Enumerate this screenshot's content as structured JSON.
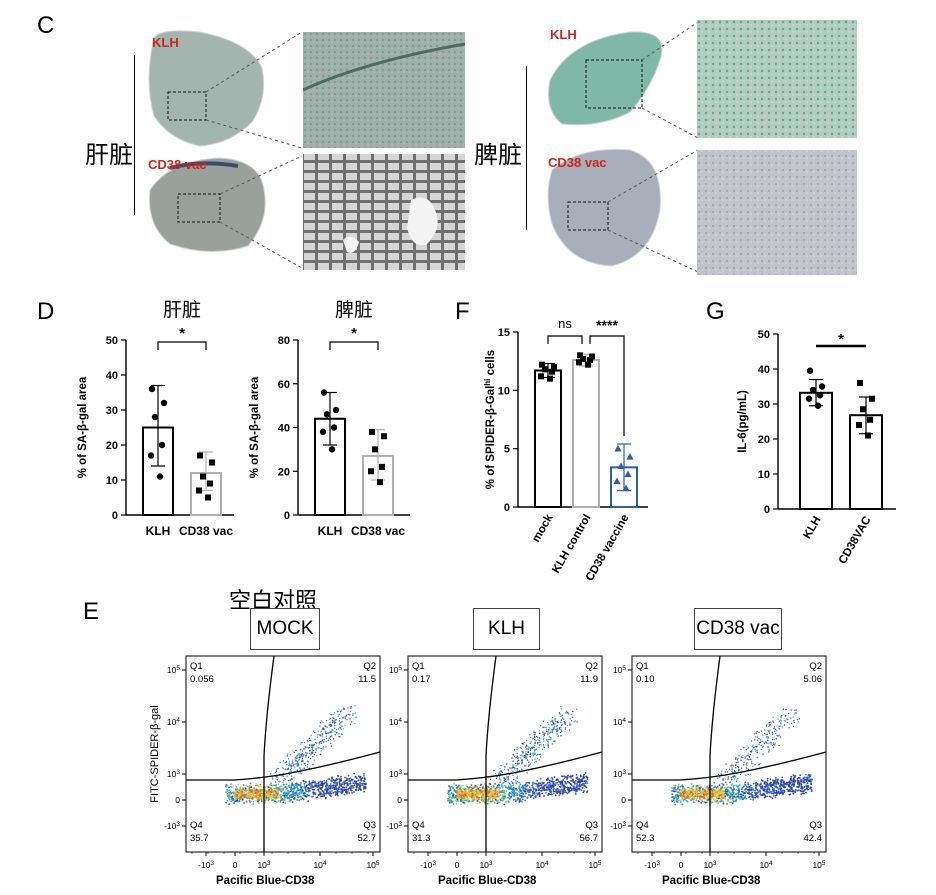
{
  "panel_c": {
    "letter": "C",
    "liver_label": "肝脏",
    "spleen_label": "脾脏",
    "klh_label": "KLH",
    "vac_label": "CD38 vac"
  },
  "panel_d": {
    "letter": "D",
    "charts": [
      {
        "title": "肝脏",
        "ylabel": "% of SA-β-gal area",
        "ylim": [
          0,
          50
        ],
        "yticks": [
          0,
          10,
          20,
          30,
          40,
          50
        ],
        "categories": [
          "KLH",
          "CD38 vac"
        ],
        "means": [
          25,
          12
        ],
        "sd_upper": [
          37,
          18
        ],
        "sd_lower": [
          14,
          7
        ],
        "points": [
          [
            36,
            32,
            28,
            20,
            17,
            11
          ],
          [
            17,
            15,
            11,
            9,
            7,
            5
          ]
        ],
        "significance": "*"
      },
      {
        "title": "脾脏",
        "ylabel": "% of SA-β-gal area",
        "ylim": [
          0,
          80
        ],
        "yticks": [
          0,
          20,
          40,
          60,
          80
        ],
        "categories": [
          "KLH",
          "CD38 vac"
        ],
        "means": [
          44,
          27
        ],
        "sd_upper": [
          56,
          39
        ],
        "sd_lower": [
          32,
          16
        ],
        "points": [
          [
            56,
            48,
            46,
            40,
            38,
            30
          ],
          [
            38,
            36,
            30,
            22,
            20,
            15
          ]
        ],
        "significance": "*"
      }
    ]
  },
  "panel_f": {
    "letter": "F",
    "ylabel_pre": "% of SPIDER-β-Gal",
    "ylabel_sup": "hi",
    "ylabel_post": " cells",
    "ylim": [
      0,
      15
    ],
    "yticks": [
      0,
      5,
      10,
      15
    ],
    "categories": [
      "mock",
      "KLH control",
      "CD38 vaccine"
    ],
    "means": [
      11.7,
      12.6,
      3.4
    ],
    "sd_upper": [
      12.3,
      13.1,
      5.4
    ],
    "sd_lower": [
      11.1,
      12.1,
      1.4
    ],
    "points": [
      [
        12.2,
        12.0,
        11.8,
        11.6,
        11.2,
        11.0
      ],
      [
        13.0,
        12.9,
        12.7,
        12.6,
        12.4,
        12.2
      ],
      [
        5.0,
        4.3,
        3.5,
        2.8,
        2.2,
        1.6
      ]
    ],
    "sig_left": "ns",
    "sig_right": "****"
  },
  "panel_g": {
    "letter": "G",
    "ylabel": "IL-6(pg/mL)",
    "ylim": [
      0,
      50
    ],
    "yticks": [
      0,
      10,
      20,
      30,
      40,
      50
    ],
    "categories": [
      "KLH",
      "CD38VAC"
    ],
    "means": [
      33.2,
      26.8
    ],
    "sd_upper": [
      37.0,
      32.0
    ],
    "sd_lower": [
      29.5,
      21.5
    ],
    "points": [
      [
        39.5,
        35.0,
        34.0,
        32.5,
        31.5,
        29.5
      ],
      [
        36.0,
        31.5,
        28.5,
        25.5,
        24.0,
        21.0
      ]
    ],
    "significance": "*"
  },
  "panel_e": {
    "letter": "E",
    "header_label": "空白对照",
    "ylabel": "FITC-SPIDER-β-gal",
    "xlabel": "Pacific Blue-CD38",
    "plots": [
      {
        "title": "MOCK",
        "q1": "0.056",
        "q2": "11.5",
        "q3": "52.7",
        "q4": "35.7"
      },
      {
        "title": "KLH",
        "q1": "0.17",
        "q2": "11.9",
        "q3": "56.7",
        "q4": "31.3"
      },
      {
        "title": "CD38 vac",
        "q1": "0.10",
        "q2": "5.06",
        "q3": "42.4",
        "q4": "52.3"
      }
    ],
    "quadrant_labels": [
      "Q1",
      "Q2",
      "Q3",
      "Q4"
    ],
    "x_tick_labels": [
      "-10",
      "0",
      "10",
      "10",
      "10"
    ],
    "x_tick_exps": [
      "3",
      "",
      "3",
      "4",
      "5"
    ],
    "y_tick_labels": [
      "10",
      "10",
      "10",
      "0",
      "-10"
    ],
    "y_tick_exps": [
      "5",
      "4",
      "3",
      "",
      "3"
    ]
  },
  "colors": {
    "klh_bar": "#000000",
    "vac_bar": "#b0b0b0",
    "f_vac": "#2f5ea8",
    "label_red": "#c8281e"
  }
}
